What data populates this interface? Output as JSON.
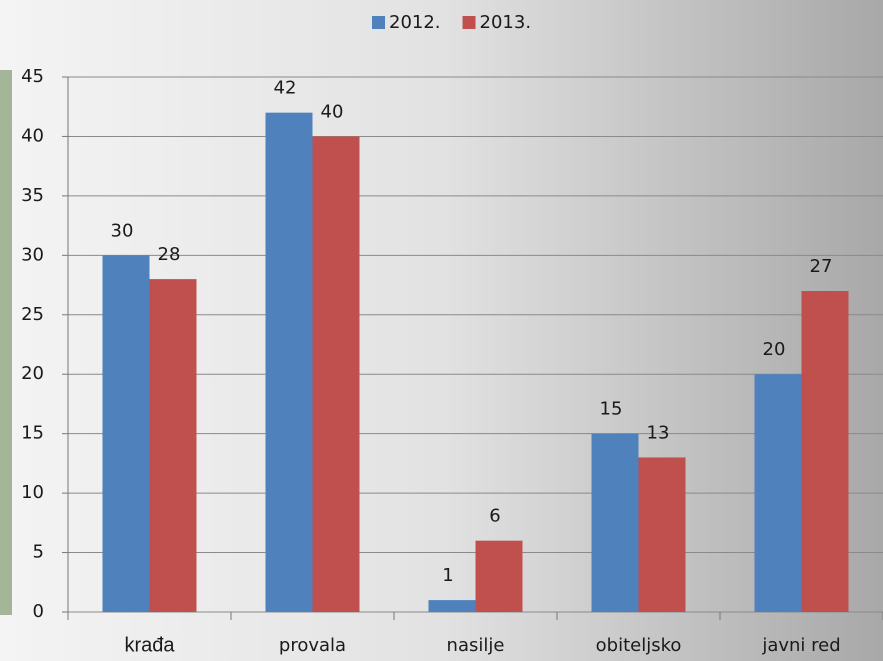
{
  "chart_data": {
    "type": "bar",
    "categories": [
      "krađa",
      "provala",
      "nasilje",
      "obiteljsko",
      "javni red"
    ],
    "series": [
      {
        "name": "2012.",
        "color": "#4f81bd",
        "values": [
          30,
          42,
          1,
          15,
          20
        ]
      },
      {
        "name": "2013.",
        "color": "#c0504d",
        "values": [
          28,
          40,
          6,
          13,
          27
        ]
      }
    ],
    "ylim": [
      0,
      45
    ],
    "yticks": [
      0,
      5,
      10,
      15,
      20,
      25,
      30,
      35,
      40,
      45
    ],
    "grid": true,
    "legend": "top"
  }
}
